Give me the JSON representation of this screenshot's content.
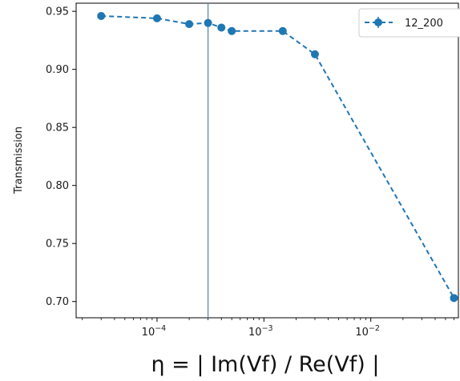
{
  "chart_data": {
    "type": "line",
    "title": "",
    "xlabel": "η = | Im(Vf) / Re(Vf) |",
    "ylabel": "Transmission",
    "xscale": "log",
    "xlim": [
      1.75e-05,
      0.066
    ],
    "ylim": [
      0.686,
      0.957
    ],
    "yticks": [
      0.7,
      0.75,
      0.8,
      0.85,
      0.9,
      0.95
    ],
    "ytick_labels": [
      "0.70",
      "0.75",
      "0.80",
      "0.85",
      "0.90",
      "0.95"
    ],
    "xticks": [
      0.0001,
      0.001,
      0.01
    ],
    "xtick_labels": [
      {
        "base": "10",
        "exp": "−4"
      },
      {
        "base": "10",
        "exp": "−3"
      },
      {
        "base": "10",
        "exp": "−2"
      }
    ],
    "vline_x": 0.0003,
    "grid": false,
    "legend_position": "top-right",
    "series": [
      {
        "name": "12_200",
        "color": "#1f77b4",
        "linestyle": "dashed",
        "marker": "circle",
        "x": [
          3e-05,
          0.0001,
          0.0002,
          0.0003,
          0.0004,
          0.0005,
          0.0015,
          0.003,
          0.06
        ],
        "y": [
          0.946,
          0.944,
          0.939,
          0.94,
          0.936,
          0.933,
          0.933,
          0.913,
          0.703
        ],
        "yerr": [
          0.002,
          0.002,
          0.002,
          0.002,
          0.002,
          0.002,
          0.003,
          0.002,
          0.002
        ]
      }
    ]
  },
  "colors": {
    "series": "#1f77b4",
    "vline": "#5f8aa0",
    "axes": "#000000"
  }
}
